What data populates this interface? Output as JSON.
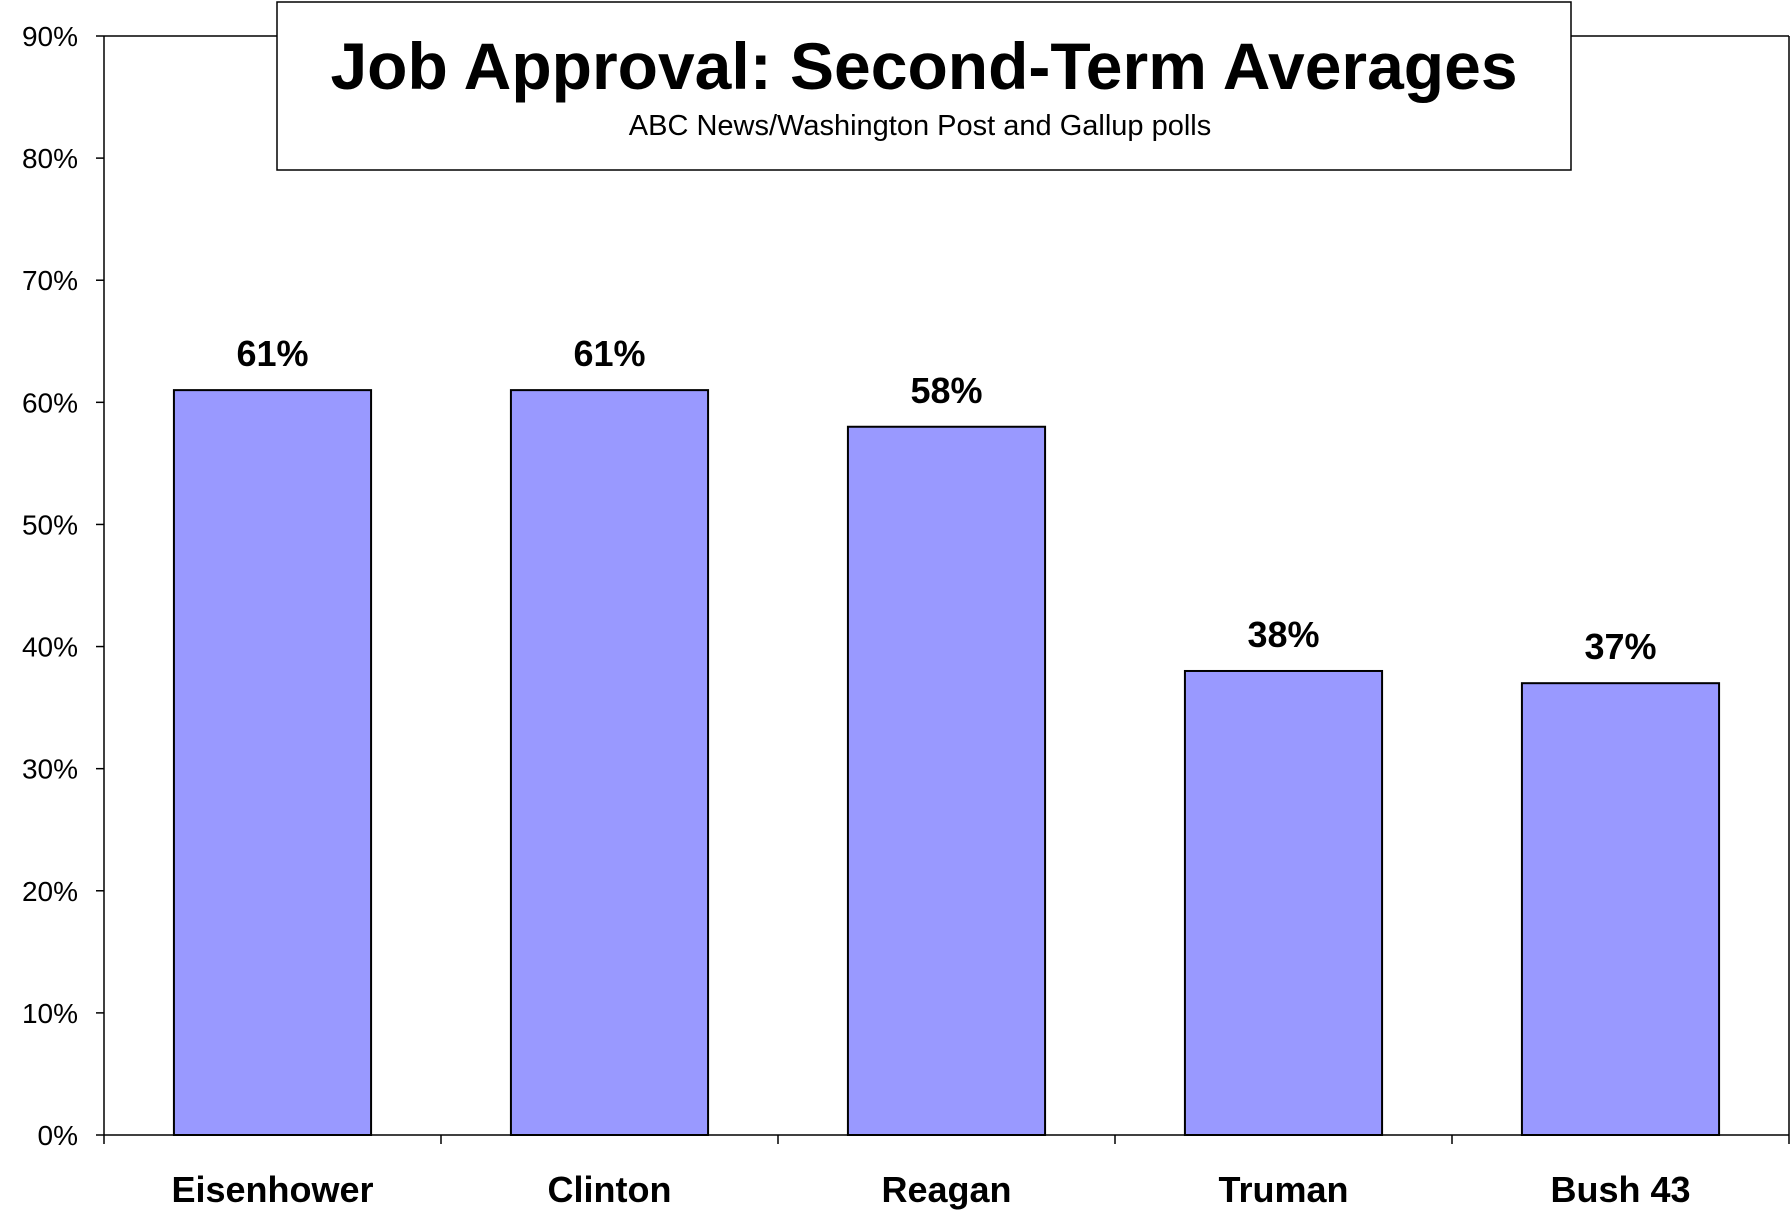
{
  "chart_data": {
    "type": "bar",
    "title": "Job Approval: Second-Term Averages",
    "subtitle": "ABC News/Washington Post and Gallup polls",
    "categories": [
      "Eisenhower",
      "Clinton",
      "Reagan",
      "Truman",
      "Bush 43"
    ],
    "values": [
      61,
      61,
      58,
      38,
      37
    ],
    "value_labels": [
      "61%",
      "61%",
      "58%",
      "38%",
      "37%"
    ],
    "ylim": [
      0,
      90
    ],
    "yticks": [
      0,
      10,
      20,
      30,
      40,
      50,
      60,
      70,
      80,
      90
    ],
    "ytick_labels": [
      "0%",
      "10%",
      "20%",
      "30%",
      "40%",
      "50%",
      "60%",
      "70%",
      "80%",
      "90%"
    ],
    "grid": false,
    "legend": "none",
    "bar_color": "#9999FF",
    "bar_edge_color": "#000000"
  }
}
